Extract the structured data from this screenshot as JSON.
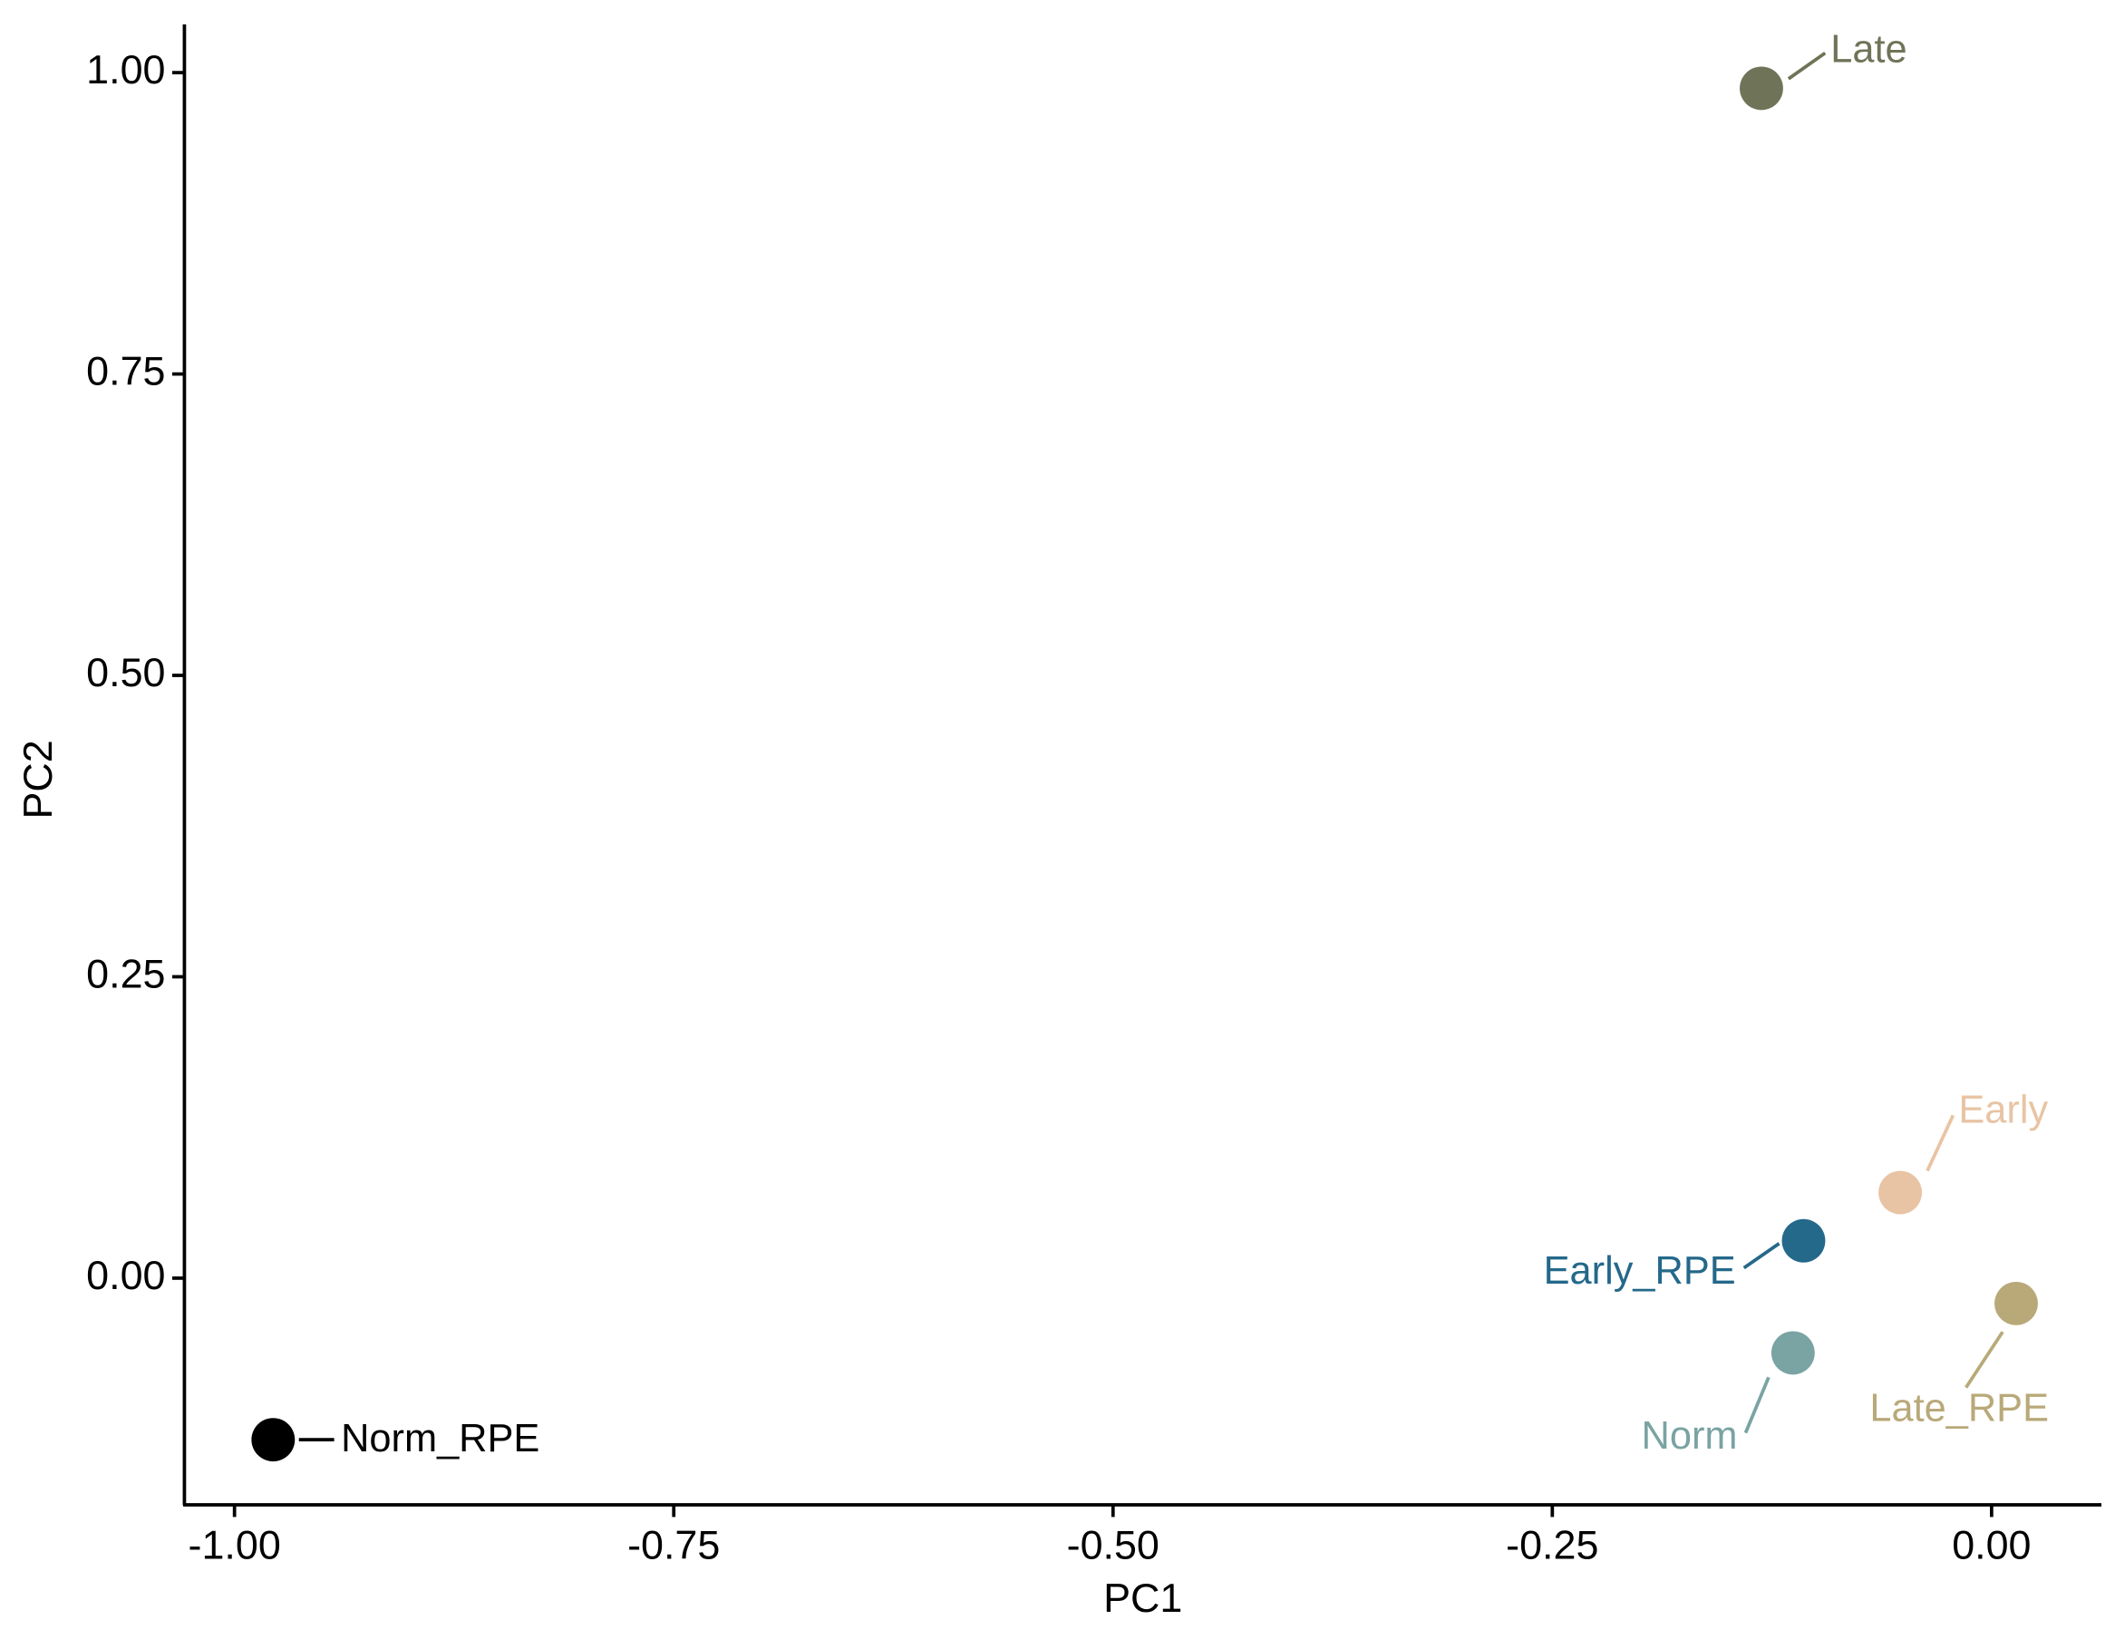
{
  "chart_data": {
    "type": "scatter",
    "x_label": "PC1",
    "y_label": "PC2",
    "labels": [
      "Norm_RPE",
      "Late",
      "Early",
      "Early_RPE",
      "Norm",
      "Late_RPE"
    ],
    "x": [
      -0.978,
      -0.131,
      -0.052,
      -0.107,
      -0.113,
      0.014
    ],
    "y": [
      -0.134,
      0.987,
      0.071,
      0.031,
      -0.062,
      -0.021
    ],
    "colors": [
      "#000000",
      "#6f7458",
      "#e8c4a4",
      "#24688a",
      "#7aa3a3",
      "#b9a979"
    ],
    "xlim": [
      -1.0285,
      0.0625
    ],
    "ylim": [
      -0.188,
      1.04
    ],
    "xticks": [
      {
        "value": -1,
        "label": "-1.00"
      },
      -0.75,
      {
        "value": -0.5,
        "label": "-0.50"
      },
      -0.25,
      {
        "value": 0,
        "label": "0.00"
      }
    ],
    "yticks": [
      {
        "value": 0,
        "label": "0.00"
      },
      0.25,
      {
        "value": 0.5,
        "label": "0.50"
      },
      0.75,
      {
        "value": 1,
        "label": "1.00"
      }
    ],
    "grid": false
  }
}
